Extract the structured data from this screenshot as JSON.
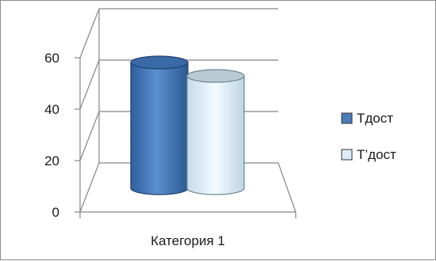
{
  "chart_data": {
    "type": "bar",
    "style": "3d-cylinder",
    "categories": [
      "Категория 1"
    ],
    "series": [
      {
        "name": "Tдост",
        "values": [
          56
        ],
        "color": "#4a7ebb"
      },
      {
        "name": "T’дост",
        "values": [
          50
        ],
        "color": "#dbeef8"
      }
    ],
    "ylim": [
      0,
      60
    ],
    "yticks": [
      0,
      20,
      40,
      60
    ],
    "grid": true,
    "legend_position": "right",
    "title": "",
    "xlabel": "",
    "ylabel": ""
  }
}
